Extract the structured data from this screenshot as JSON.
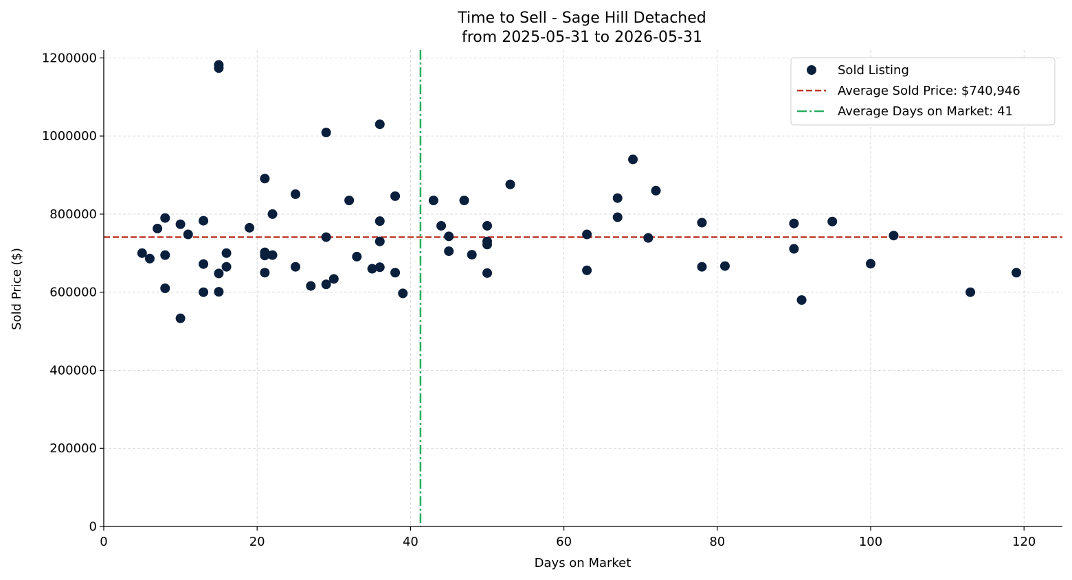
{
  "chart_data": {
    "type": "scatter",
    "title": "Time to Sell - Sage Hill Detached",
    "subtitle": "from 2025-05-31 to 2026-05-31",
    "xlabel": "Days on Market",
    "ylabel": "Sold Price ($)",
    "xlim": [
      0,
      125
    ],
    "ylim": [
      0,
      1220000
    ],
    "x_ticks": [
      0,
      20,
      40,
      60,
      80,
      100,
      120
    ],
    "y_ticks": [
      0,
      200000,
      400000,
      600000,
      800000,
      1000000,
      1200000
    ],
    "grid": true,
    "legend_position": "top-right",
    "colors": {
      "points": "#0a1f3c",
      "avg_price": "#c0392b",
      "avg_days": "#27ae60"
    },
    "series": [
      {
        "name": "Sold Listing",
        "points": [
          [
            5,
            700000
          ],
          [
            6,
            686000
          ],
          [
            7,
            763000
          ],
          [
            8,
            790000
          ],
          [
            8,
            695000
          ],
          [
            8,
            610000
          ],
          [
            10,
            774000
          ],
          [
            10,
            533000
          ],
          [
            11,
            748000
          ],
          [
            13,
            783000
          ],
          [
            13,
            672000
          ],
          [
            13,
            600000
          ],
          [
            15,
            1182000
          ],
          [
            15,
            1174000
          ],
          [
            15,
            648000
          ],
          [
            15,
            601000
          ],
          [
            16,
            700000
          ],
          [
            16,
            665000
          ],
          [
            19,
            765000
          ],
          [
            21,
            891000
          ],
          [
            21,
            702000
          ],
          [
            21,
            694000
          ],
          [
            21,
            650000
          ],
          [
            22,
            800000
          ],
          [
            22,
            695000
          ],
          [
            25,
            851000
          ],
          [
            25,
            665000
          ],
          [
            27,
            616000
          ],
          [
            29,
            1009000
          ],
          [
            29,
            741000
          ],
          [
            29,
            620000
          ],
          [
            30,
            634000
          ],
          [
            32,
            835000
          ],
          [
            33,
            691000
          ],
          [
            35,
            660000
          ],
          [
            36,
            1030000
          ],
          [
            36,
            782000
          ],
          [
            36,
            730000
          ],
          [
            36,
            664000
          ],
          [
            38,
            846000
          ],
          [
            38,
            650000
          ],
          [
            39,
            597000
          ],
          [
            43,
            835000
          ],
          [
            44,
            770000
          ],
          [
            45,
            743000
          ],
          [
            45,
            705000
          ],
          [
            47,
            835000
          ],
          [
            48,
            696000
          ],
          [
            50,
            770000
          ],
          [
            50,
            730000
          ],
          [
            50,
            722000
          ],
          [
            50,
            649000
          ],
          [
            53,
            876000
          ],
          [
            63,
            748000
          ],
          [
            63,
            656000
          ],
          [
            67,
            841000
          ],
          [
            67,
            792000
          ],
          [
            69,
            940000
          ],
          [
            71,
            739000
          ],
          [
            72,
            860000
          ],
          [
            78,
            778000
          ],
          [
            78,
            665000
          ],
          [
            81,
            667000
          ],
          [
            90,
            776000
          ],
          [
            90,
            711000
          ],
          [
            91,
            580000
          ],
          [
            95,
            781000
          ],
          [
            100,
            673000
          ],
          [
            103,
            745000
          ],
          [
            113,
            600000
          ],
          [
            119,
            650000
          ]
        ]
      }
    ],
    "avg_price": 740946,
    "avg_days": 41.3,
    "legend": [
      {
        "label": "Sold Listing",
        "kind": "marker"
      },
      {
        "label": "Average Sold Price: $740,946",
        "kind": "dashed"
      },
      {
        "label": "Average Days on Market: 41",
        "kind": "dashdot"
      }
    ]
  }
}
